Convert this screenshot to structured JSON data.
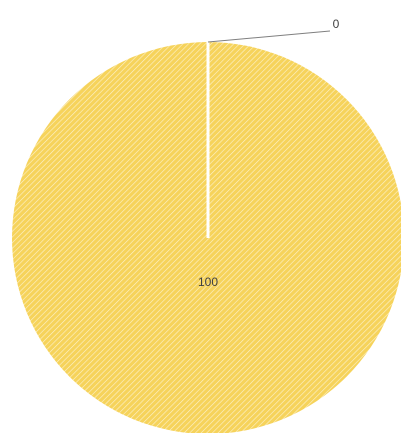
{
  "chart_data": {
    "type": "pie",
    "categories": [
      "",
      ""
    ],
    "values": [
      100,
      0
    ],
    "data_labels": [
      "100",
      "0"
    ],
    "colors": [
      "#F6D35B",
      "#7F7F7F"
    ],
    "fill_pattern": "diagonal-hatch",
    "start_angle_deg": 0,
    "legend": "none",
    "title": ""
  }
}
